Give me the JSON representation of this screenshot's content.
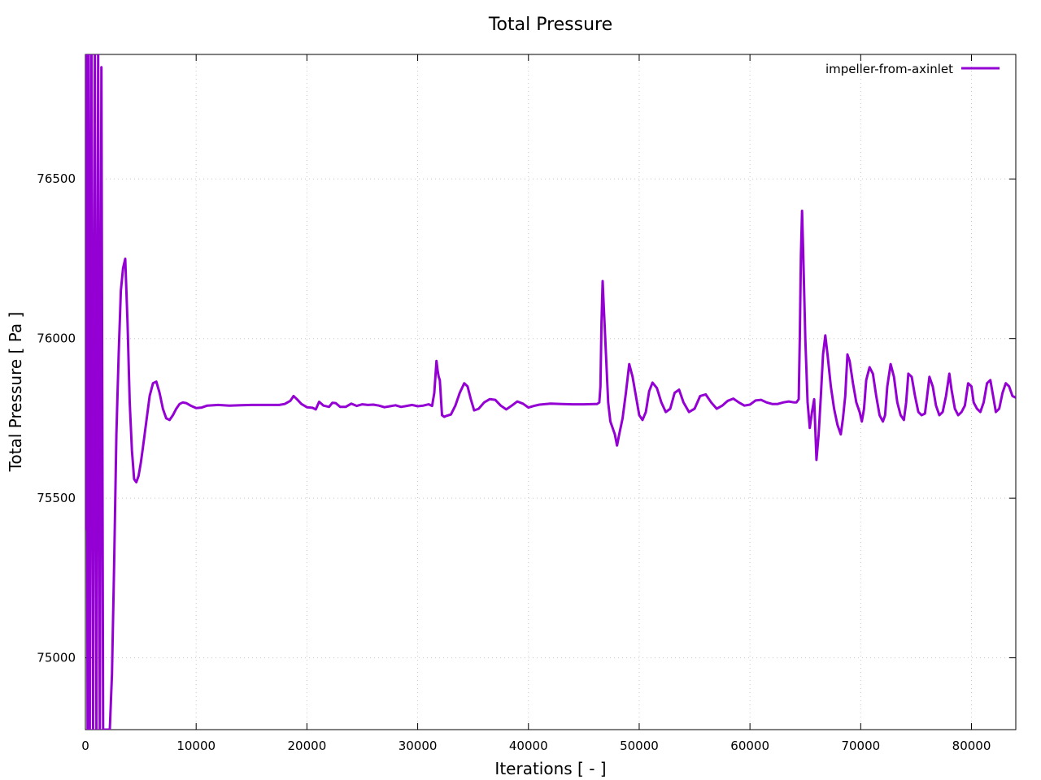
{
  "chart_data": {
    "type": "line",
    "title": "Total Pressure",
    "xlabel": "Iterations [ - ]",
    "ylabel": "Total Pressure [ Pa ]",
    "xlim": [
      0,
      84000
    ],
    "ylim": [
      74775,
      76890
    ],
    "xticks": [
      0,
      10000,
      20000,
      30000,
      40000,
      50000,
      60000,
      70000,
      80000
    ],
    "yticks": [
      75000,
      75500,
      76000,
      76500
    ],
    "grid": true,
    "legend_position": "top-right",
    "series": [
      {
        "name": "impeller-from-axinlet",
        "color": "#9400d3",
        "x": [
          0,
          100,
          200,
          300,
          400,
          550,
          700,
          850,
          1000,
          1150,
          1300,
          1450,
          1600,
          1800,
          2000,
          2200,
          2400,
          2600,
          2800,
          3000,
          3200,
          3400,
          3600,
          3800,
          4000,
          4200,
          4400,
          4600,
          4800,
          5000,
          5200,
          5500,
          5800,
          6100,
          6400,
          6700,
          7000,
          7300,
          7600,
          7900,
          8200,
          8500,
          8800,
          9100,
          9500,
          10000,
          10500,
          11000,
          12000,
          13000,
          14000,
          15000,
          16000,
          17000,
          17500,
          18000,
          18500,
          18800,
          19100,
          19500,
          20000,
          20500,
          20800,
          21100,
          21500,
          22000,
          22300,
          22600,
          23000,
          23500,
          24000,
          24500,
          25000,
          25500,
          26000,
          26500,
          27000,
          27500,
          28000,
          28500,
          29000,
          29500,
          30000,
          30500,
          31000,
          31300,
          31500,
          31700,
          31800,
          31900,
          32000,
          32200,
          32400,
          32600,
          32800,
          33000,
          33400,
          33800,
          34200,
          34500,
          34800,
          35100,
          35500,
          36000,
          36500,
          37000,
          37500,
          38000,
          38500,
          39000,
          39500,
          40000,
          40500,
          41000,
          42000,
          43000,
          44000,
          45000,
          46000,
          46200,
          46400,
          46500,
          46600,
          46700,
          46800,
          47000,
          47200,
          47400,
          47600,
          47800,
          48000,
          48200,
          48500,
          48800,
          49100,
          49400,
          49700,
          50000,
          50300,
          50600,
          50900,
          51200,
          51600,
          52000,
          52400,
          52800,
          53200,
          53600,
          54000,
          54500,
          55000,
          55500,
          56000,
          56500,
          57000,
          57500,
          58000,
          58500,
          59000,
          59500,
          60000,
          60500,
          61000,
          61500,
          62000,
          62500,
          63000,
          63500,
          64000,
          64200,
          64300,
          64400,
          64500,
          64600,
          64700,
          64800,
          65000,
          65200,
          65400,
          65600,
          65800,
          66000,
          66200,
          66400,
          66600,
          66800,
          67000,
          67300,
          67600,
          67900,
          68200,
          68400,
          68600,
          68800,
          69000,
          69300,
          69600,
          69900,
          70100,
          70300,
          70500,
          70800,
          71100,
          71400,
          71700,
          72000,
          72200,
          72400,
          72700,
          73000,
          73300,
          73600,
          73900,
          74100,
          74300,
          74600,
          74900,
          75200,
          75500,
          75800,
          76000,
          76200,
          76500,
          76800,
          77100,
          77400,
          77700,
          78000,
          78200,
          78500,
          78800,
          79100,
          79400,
          79700,
          80000,
          80200,
          80500,
          80800,
          81100,
          81400,
          81700,
          82000,
          82200,
          82500,
          82800,
          83100,
          83400,
          83700,
          84000
        ],
        "y": [
          75400,
          76890,
          74775,
          76890,
          74775,
          76890,
          74775,
          76890,
          74775,
          76890,
          74775,
          76850,
          74775,
          74775,
          74775,
          74775,
          74950,
          75300,
          75700,
          75950,
          76150,
          76220,
          76250,
          76050,
          75800,
          75650,
          75560,
          75550,
          75570,
          75610,
          75660,
          75740,
          75820,
          75860,
          75865,
          75830,
          75780,
          75750,
          75745,
          75760,
          75780,
          75795,
          75800,
          75798,
          75790,
          75782,
          75784,
          75790,
          75792,
          75790,
          75791,
          75792,
          75792,
          75792,
          75792,
          75795,
          75805,
          75820,
          75810,
          75795,
          75785,
          75783,
          75778,
          75802,
          75790,
          75786,
          75799,
          75798,
          75786,
          75786,
          75796,
          75789,
          75794,
          75792,
          75793,
          75790,
          75785,
          75788,
          75791,
          75786,
          75789,
          75792,
          75788,
          75790,
          75794,
          75789,
          75830,
          75930,
          75900,
          75880,
          75870,
          75760,
          75755,
          75758,
          75760,
          75762,
          75790,
          75830,
          75860,
          75850,
          75810,
          75775,
          75780,
          75800,
          75810,
          75808,
          75790,
          75778,
          75790,
          75803,
          75796,
          75784,
          75789,
          75793,
          75796,
          75795,
          75794,
          75794,
          75795,
          75795,
          75800,
          75850,
          76050,
          76180,
          76100,
          75950,
          75800,
          75740,
          75720,
          75700,
          75665,
          75700,
          75750,
          75830,
          75920,
          75880,
          75820,
          75760,
          75745,
          75770,
          75835,
          75862,
          75845,
          75800,
          75770,
          75780,
          75830,
          75840,
          75800,
          75770,
          75780,
          75820,
          75825,
          75800,
          75780,
          75790,
          75805,
          75812,
          75800,
          75790,
          75793,
          75806,
          75808,
          75800,
          75795,
          75795,
          75800,
          75803,
          75800,
          75800,
          75805,
          75810,
          76000,
          76260,
          76400,
          76280,
          76000,
          75800,
          75720,
          75770,
          75810,
          75620,
          75700,
          75820,
          75950,
          76010,
          75950,
          75850,
          75780,
          75730,
          75700,
          75750,
          75820,
          75950,
          75930,
          75860,
          75800,
          75770,
          75740,
          75780,
          75870,
          75910,
          75890,
          75820,
          75760,
          75740,
          75760,
          75850,
          75920,
          75880,
          75800,
          75760,
          75745,
          75800,
          75890,
          75880,
          75820,
          75770,
          75760,
          75765,
          75820,
          75880,
          75850,
          75790,
          75760,
          75770,
          75820,
          75890,
          75840,
          75780,
          75760,
          75770,
          75790,
          75860,
          75850,
          75800,
          75780,
          75770,
          75800,
          75860,
          75870,
          75810,
          75770,
          75780,
          75830,
          75860,
          75850,
          75820,
          75815
        ]
      }
    ]
  }
}
